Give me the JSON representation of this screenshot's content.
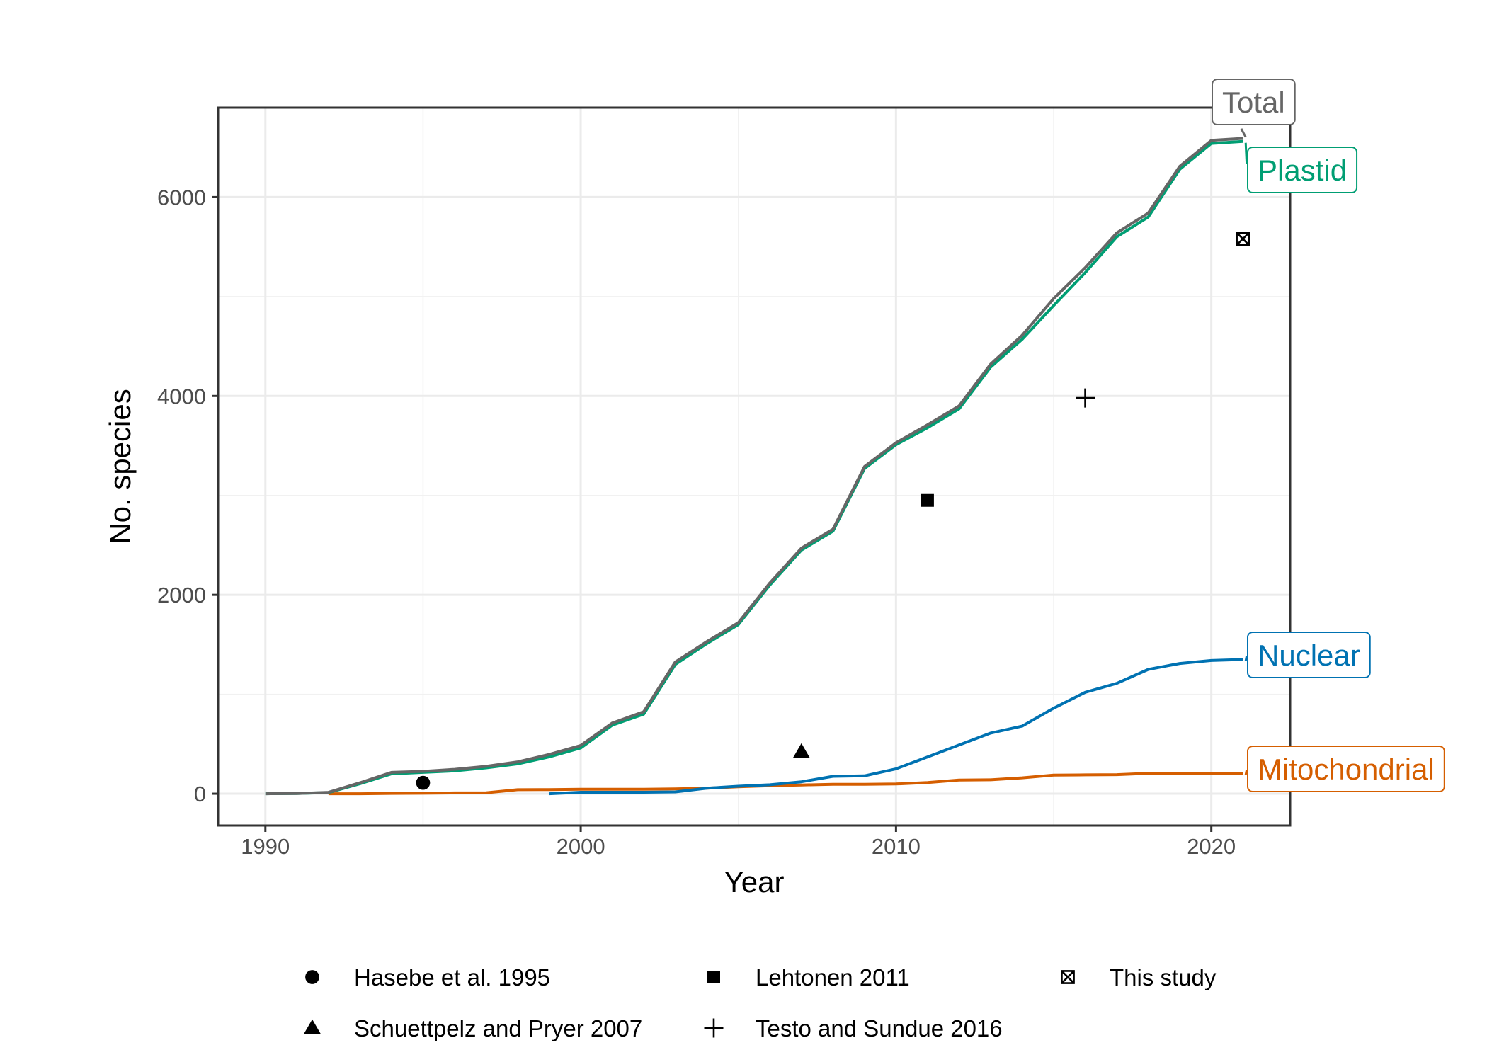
{
  "chart_data": {
    "type": "line",
    "title": "",
    "xlabel": "Year",
    "ylabel": "No. species",
    "xlim": [
      1988.5,
      2022.5
    ],
    "ylim": [
      -320,
      6900
    ],
    "x_ticks": [
      1990,
      2000,
      2010,
      2020
    ],
    "y_ticks": [
      0,
      2000,
      4000,
      6000
    ],
    "grid": true,
    "legend_position": "bottom",
    "series": [
      {
        "name": "Mitochondrial",
        "color": "#D55E00",
        "x": [
          1992,
          1993,
          1994,
          1995,
          1996,
          1997,
          1998,
          1999,
          2000,
          2001,
          2002,
          2003,
          2004,
          2005,
          2006,
          2007,
          2008,
          2009,
          2010,
          2011,
          2012,
          2013,
          2014,
          2015,
          2016,
          2017,
          2018,
          2019,
          2020,
          2021
        ],
        "y": [
          0,
          0,
          3,
          5,
          8,
          10,
          40,
          42,
          45,
          45,
          45,
          48,
          55,
          70,
          80,
          88,
          95,
          95,
          98,
          112,
          138,
          140,
          160,
          188,
          190,
          192,
          205,
          205,
          205,
          205
        ]
      },
      {
        "name": "Nuclear",
        "color": "#0072B2",
        "x": [
          1999,
          2000,
          2001,
          2002,
          2003,
          2004,
          2005,
          2006,
          2007,
          2008,
          2009,
          2010,
          2011,
          2012,
          2013,
          2014,
          2015,
          2016,
          2017,
          2018,
          2019,
          2020,
          2021
        ],
        "y": [
          0,
          15,
          15,
          15,
          18,
          55,
          75,
          90,
          120,
          175,
          180,
          250,
          370,
          490,
          610,
          680,
          860,
          1020,
          1110,
          1250,
          1310,
          1340,
          1350
        ]
      },
      {
        "name": "Plastid",
        "color": "#009E73",
        "x": [
          1990,
          1991,
          1992,
          1993,
          1994,
          1995,
          1996,
          1997,
          1998,
          1999,
          2000,
          2001,
          2002,
          2003,
          2004,
          2005,
          2006,
          2007,
          2008,
          2009,
          2010,
          2011,
          2012,
          2013,
          2014,
          2015,
          2016,
          2017,
          2018,
          2019,
          2020,
          2021
        ],
        "y": [
          0,
          2,
          12,
          100,
          200,
          215,
          230,
          260,
          300,
          370,
          460,
          690,
          800,
          1300,
          1510,
          1700,
          2100,
          2450,
          2640,
          3270,
          3510,
          3680,
          3870,
          4290,
          4570,
          4910,
          5240,
          5600,
          5800,
          6280,
          6540,
          6560
        ]
      },
      {
        "name": "Total",
        "color": "#666666",
        "x": [
          1990,
          1991,
          1992,
          1993,
          1994,
          1995,
          1996,
          1997,
          1998,
          1999,
          2000,
          2001,
          2002,
          2003,
          2004,
          2005,
          2006,
          2007,
          2008,
          2009,
          2010,
          2011,
          2012,
          2013,
          2014,
          2015,
          2016,
          2017,
          2018,
          2019,
          2020,
          2021
        ],
        "y": [
          0,
          2,
          14,
          110,
          215,
          225,
          245,
          275,
          320,
          395,
          485,
          710,
          825,
          1325,
          1530,
          1720,
          2120,
          2470,
          2660,
          3290,
          3530,
          3710,
          3900,
          4320,
          4610,
          4980,
          5290,
          5640,
          5840,
          6310,
          6570,
          6590
        ]
      }
    ],
    "points": [
      {
        "name": "Hasebe et al. 1995",
        "shape": "circle",
        "x": 1995,
        "y": 110
      },
      {
        "name": "Schuettpelz and Pryer 2007",
        "shape": "triangle",
        "x": 2007,
        "y": 420
      },
      {
        "name": "Lehtonen 2011",
        "shape": "square",
        "x": 2011,
        "y": 2950
      },
      {
        "name": "Testo and Sundue 2016",
        "shape": "plus",
        "x": 2016,
        "y": 3980
      },
      {
        "name": "This study",
        "shape": "boxcross",
        "x": 2021,
        "y": 5580
      }
    ]
  }
}
